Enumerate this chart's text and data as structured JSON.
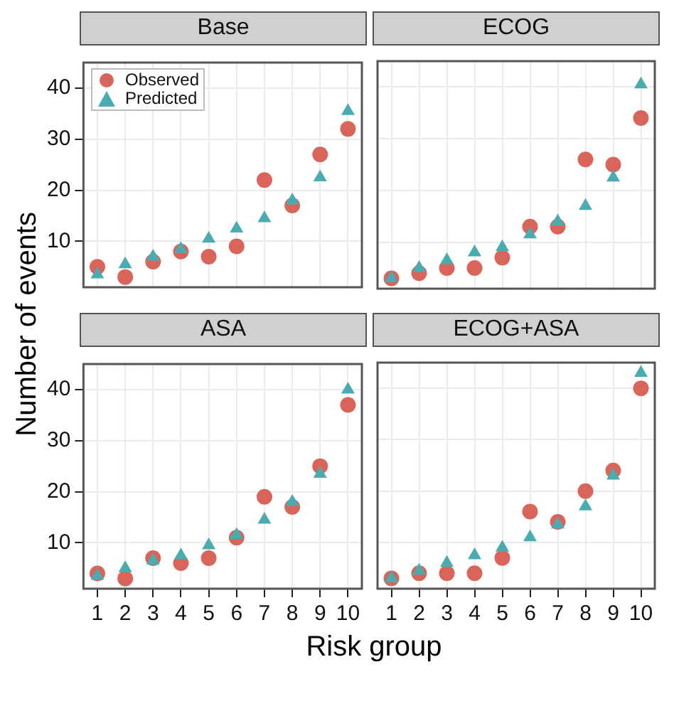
{
  "chart_data": [
    {
      "type": "scatter",
      "title": "Base",
      "ylabel": "Number of events",
      "categories": [
        "1",
        "2",
        "3",
        "4",
        "5",
        "6",
        "7",
        "8",
        "9",
        "10"
      ],
      "ylim": [
        1,
        45
      ],
      "yticks": [
        10,
        20,
        30,
        40
      ],
      "grid": true,
      "legend": "top left",
      "tick_labels": "y",
      "series": [
        {
          "name": "Observed",
          "color": "#d9645a",
          "marker": "circle",
          "values": [
            5,
            3,
            6,
            8,
            7,
            9,
            22,
            17,
            27,
            32
          ]
        },
        {
          "name": "Predicted",
          "color": "#4aabb1",
          "marker": "triangle",
          "values": [
            3.5,
            5.5,
            7,
            8.5,
            10.5,
            12.5,
            14.5,
            18,
            22.5,
            35.5
          ]
        }
      ]
    },
    {
      "type": "scatter",
      "title": "ECOG",
      "categories": [
        "1",
        "2",
        "3",
        "4",
        "5",
        "6",
        "7",
        "8",
        "9",
        "10"
      ],
      "ylim": [
        1,
        45
      ],
      "yticks": [
        10,
        20,
        30,
        40
      ],
      "grid": true,
      "tick_labels": false,
      "series": [
        {
          "color": "#d9645a",
          "marker": "circle",
          "values": [
            3,
            4,
            5,
            5,
            7,
            13,
            13,
            26,
            25,
            34
          ]
        },
        {
          "color": "#4aabb1",
          "marker": "triangle",
          "values": [
            3,
            5,
            6.5,
            8,
            9,
            11.5,
            14,
            17,
            22.5,
            40.5
          ]
        }
      ]
    },
    {
      "type": "scatter",
      "title": "ASA",
      "xlabel": "Risk group",
      "categories": [
        "1",
        "2",
        "3",
        "4",
        "5",
        "6",
        "7",
        "8",
        "9",
        "10"
      ],
      "ylim": [
        1,
        45
      ],
      "yticks": [
        10,
        20,
        30,
        40
      ],
      "grid": true,
      "series": [
        {
          "color": "#d9645a",
          "marker": "circle",
          "values": [
            4,
            3,
            7,
            6,
            7,
            11,
            19,
            17,
            25,
            37
          ]
        },
        {
          "color": "#4aabb1",
          "marker": "triangle",
          "values": [
            3.5,
            5,
            6.5,
            7.5,
            9.5,
            11.5,
            14.5,
            18,
            23.5,
            40
          ]
        }
      ]
    },
    {
      "type": "scatter",
      "title": "ECOG+ASA",
      "categories": [
        "1",
        "2",
        "3",
        "4",
        "5",
        "6",
        "7",
        "8",
        "9",
        "10"
      ],
      "ylim": [
        1,
        45
      ],
      "yticks": [
        10,
        20,
        30,
        40
      ],
      "grid": true,
      "tick_labels": "x",
      "series": [
        {
          "color": "#d9645a",
          "marker": "circle",
          "values": [
            3,
            4,
            4,
            4,
            7,
            16,
            14,
            20,
            24,
            40
          ]
        },
        {
          "color": "#4aabb1",
          "marker": "triangle",
          "values": [
            3,
            4.5,
            6,
            7.5,
            9,
            11,
            13.5,
            17,
            23,
            43
          ]
        }
      ]
    }
  ]
}
